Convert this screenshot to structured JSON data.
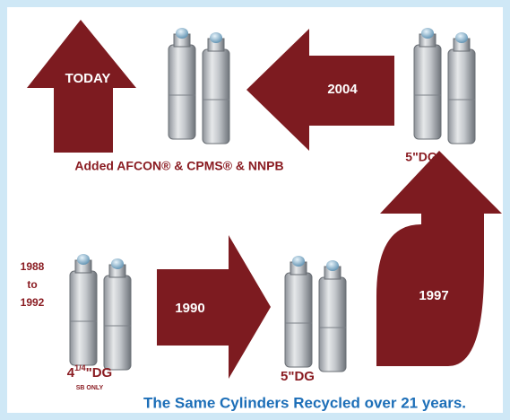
{
  "arrows": {
    "today": "TODAY",
    "y2004": "2004",
    "y1990": "1990",
    "y1997": "1997"
  },
  "labels": {
    "added": "Added AFCON® & CPMS® & NNPB",
    "dg_top": "5\"DG",
    "dg_mid": "5\"DG",
    "range_start": "1988",
    "range_to": "to",
    "range_end": "1992",
    "dg_first_whole": "4",
    "dg_first_fraction": "1/4",
    "dg_first_unit": "\"DG",
    "dg_first_note": "SB ONLY"
  },
  "caption": "The Same Cylinders Recycled over 21 years."
}
